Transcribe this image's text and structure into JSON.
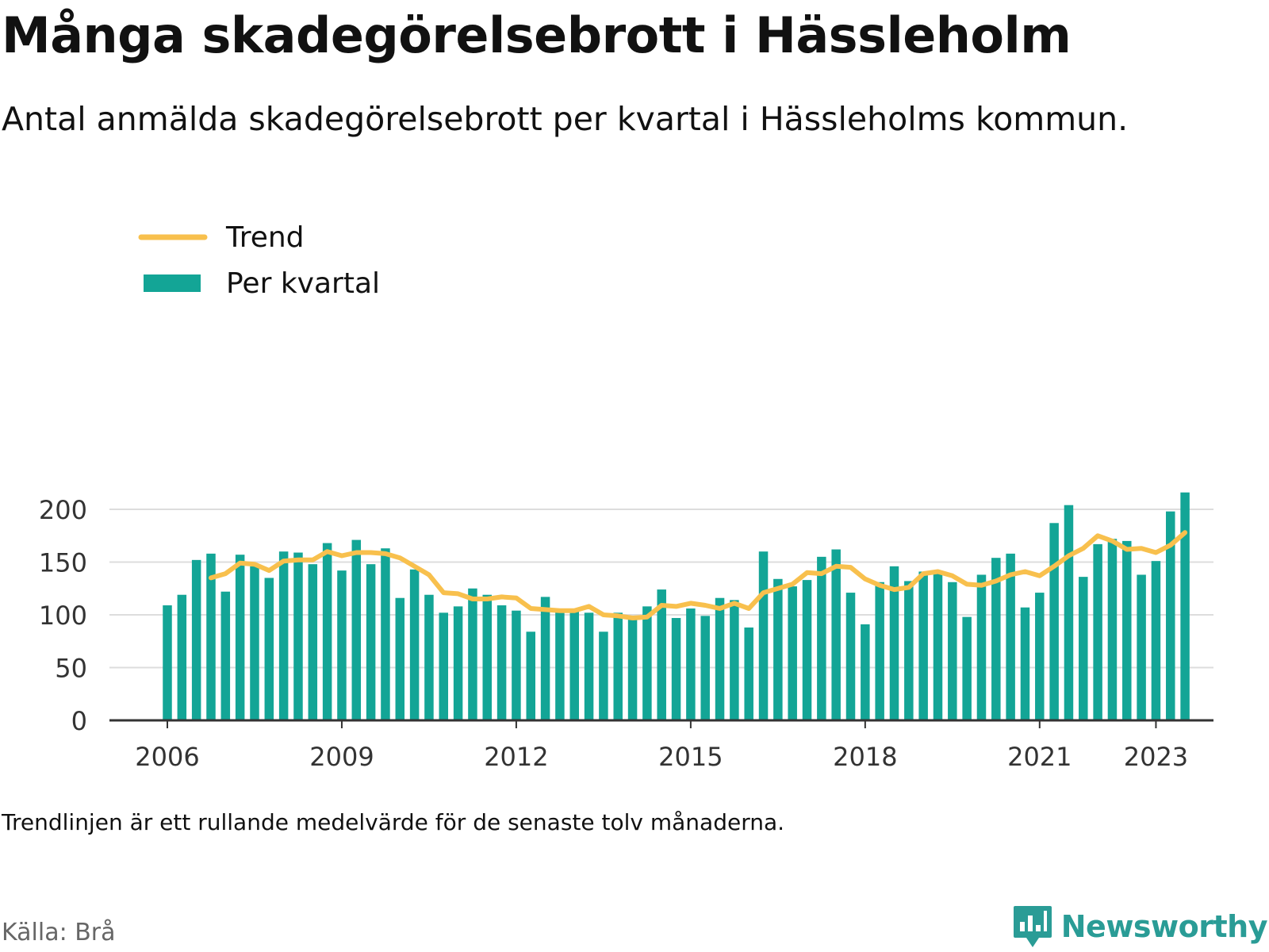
{
  "title": "Många skadegörelsebrott i Hässleholm",
  "subtitle": "Antal anmälda skadegörelsebrott per kvartal i Hässleholms kommun.",
  "note": "Trendlinjen är ett rullande medelvärde för de senaste tolv månaderna.",
  "source": "Källa: Brå",
  "brand": "Newsworthy",
  "colors": {
    "bar": "#13a596",
    "trend": "#f8c04d",
    "grid": "#dddddd",
    "axis": "#333333",
    "brand": "#2a9c96"
  },
  "chart_data": {
    "type": "bar",
    "x_start": 2006,
    "quarters_per_year": 4,
    "xticks": [
      2006,
      2009,
      2012,
      2015,
      2018,
      2021,
      2023
    ],
    "yticks": [
      0,
      50,
      100,
      150,
      200
    ],
    "ylim": [
      0,
      220
    ],
    "legend_position": "top-left",
    "grid": true,
    "series": [
      {
        "name": "Per kvartal",
        "type": "bar",
        "values": [
          109,
          119,
          152,
          158,
          122,
          157,
          146,
          135,
          160,
          159,
          148,
          168,
          142,
          171,
          148,
          163,
          116,
          143,
          119,
          102,
          108,
          125,
          119,
          109,
          104,
          84,
          117,
          105,
          103,
          102,
          84,
          102,
          96,
          108,
          124,
          97,
          106,
          99,
          116,
          114,
          88,
          160,
          134,
          127,
          133,
          155,
          162,
          121,
          91,
          131,
          146,
          132,
          141,
          140,
          131,
          98,
          138,
          154,
          158,
          107,
          121,
          187,
          204,
          136,
          167,
          172,
          170,
          138,
          151,
          198,
          216
        ]
      },
      {
        "name": "Trend",
        "type": "line",
        "values": [
          null,
          null,
          null,
          135,
          139,
          149,
          148,
          142,
          151,
          152,
          152,
          160,
          156,
          159,
          159,
          158,
          154,
          146,
          138,
          121,
          120,
          115,
          115,
          117,
          116,
          106,
          105,
          104,
          104,
          108,
          100,
          99,
          97,
          98,
          109,
          108,
          111,
          109,
          106,
          111,
          106,
          121,
          125,
          129,
          140,
          139,
          146,
          145,
          134,
          128,
          124,
          126,
          139,
          141,
          137,
          129,
          128,
          132,
          138,
          141,
          137,
          146,
          156,
          163,
          175,
          170,
          162,
          163,
          159,
          166,
          178
        ]
      }
    ]
  }
}
